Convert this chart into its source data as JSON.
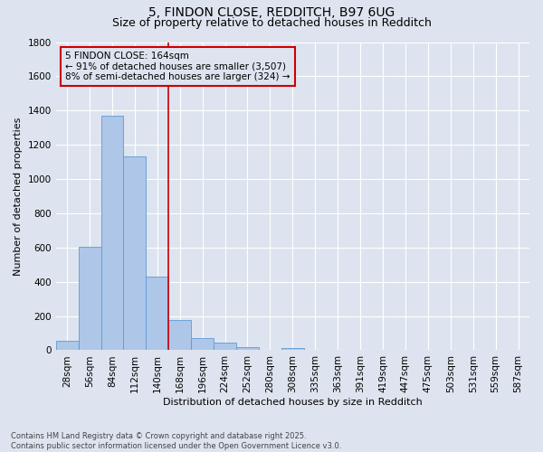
{
  "title_line1": "5, FINDON CLOSE, REDDITCH, B97 6UG",
  "title_line2": "Size of property relative to detached houses in Redditch",
  "xlabel": "Distribution of detached houses by size in Redditch",
  "ylabel": "Number of detached properties",
  "bar_labels": [
    "28sqm",
    "56sqm",
    "84sqm",
    "112sqm",
    "140sqm",
    "168sqm",
    "196sqm",
    "224sqm",
    "252sqm",
    "280sqm",
    "308sqm",
    "335sqm",
    "363sqm",
    "391sqm",
    "419sqm",
    "447sqm",
    "475sqm",
    "503sqm",
    "531sqm",
    "559sqm",
    "587sqm"
  ],
  "bar_values": [
    55,
    605,
    1370,
    1130,
    430,
    175,
    70,
    45,
    20,
    0,
    15,
    0,
    0,
    0,
    0,
    0,
    0,
    0,
    0,
    0,
    0
  ],
  "bar_color": "#aec6e8",
  "bar_edge_color": "#5b9bd5",
  "background_color": "#dde4ef",
  "grid_color": "#ffffff",
  "vline_color": "#cc0000",
  "annotation_line1": "5 FINDON CLOSE: 164sqm",
  "annotation_line2": "← 91% of detached houses are smaller (3,507)",
  "annotation_line3": "8% of semi-detached houses are larger (324) →",
  "annotation_box_color": "#cc0000",
  "ylim": [
    0,
    1800
  ],
  "yticks": [
    0,
    200,
    400,
    600,
    800,
    1000,
    1200,
    1400,
    1600,
    1800
  ],
  "footer_text": "Contains HM Land Registry data © Crown copyright and database right 2025.\nContains public sector information licensed under the Open Government Licence v3.0.",
  "title_fontsize": 10,
  "subtitle_fontsize": 9,
  "axis_label_fontsize": 8,
  "tick_fontsize": 7.5,
  "annotation_fontsize": 7.5,
  "footer_fontsize": 6
}
